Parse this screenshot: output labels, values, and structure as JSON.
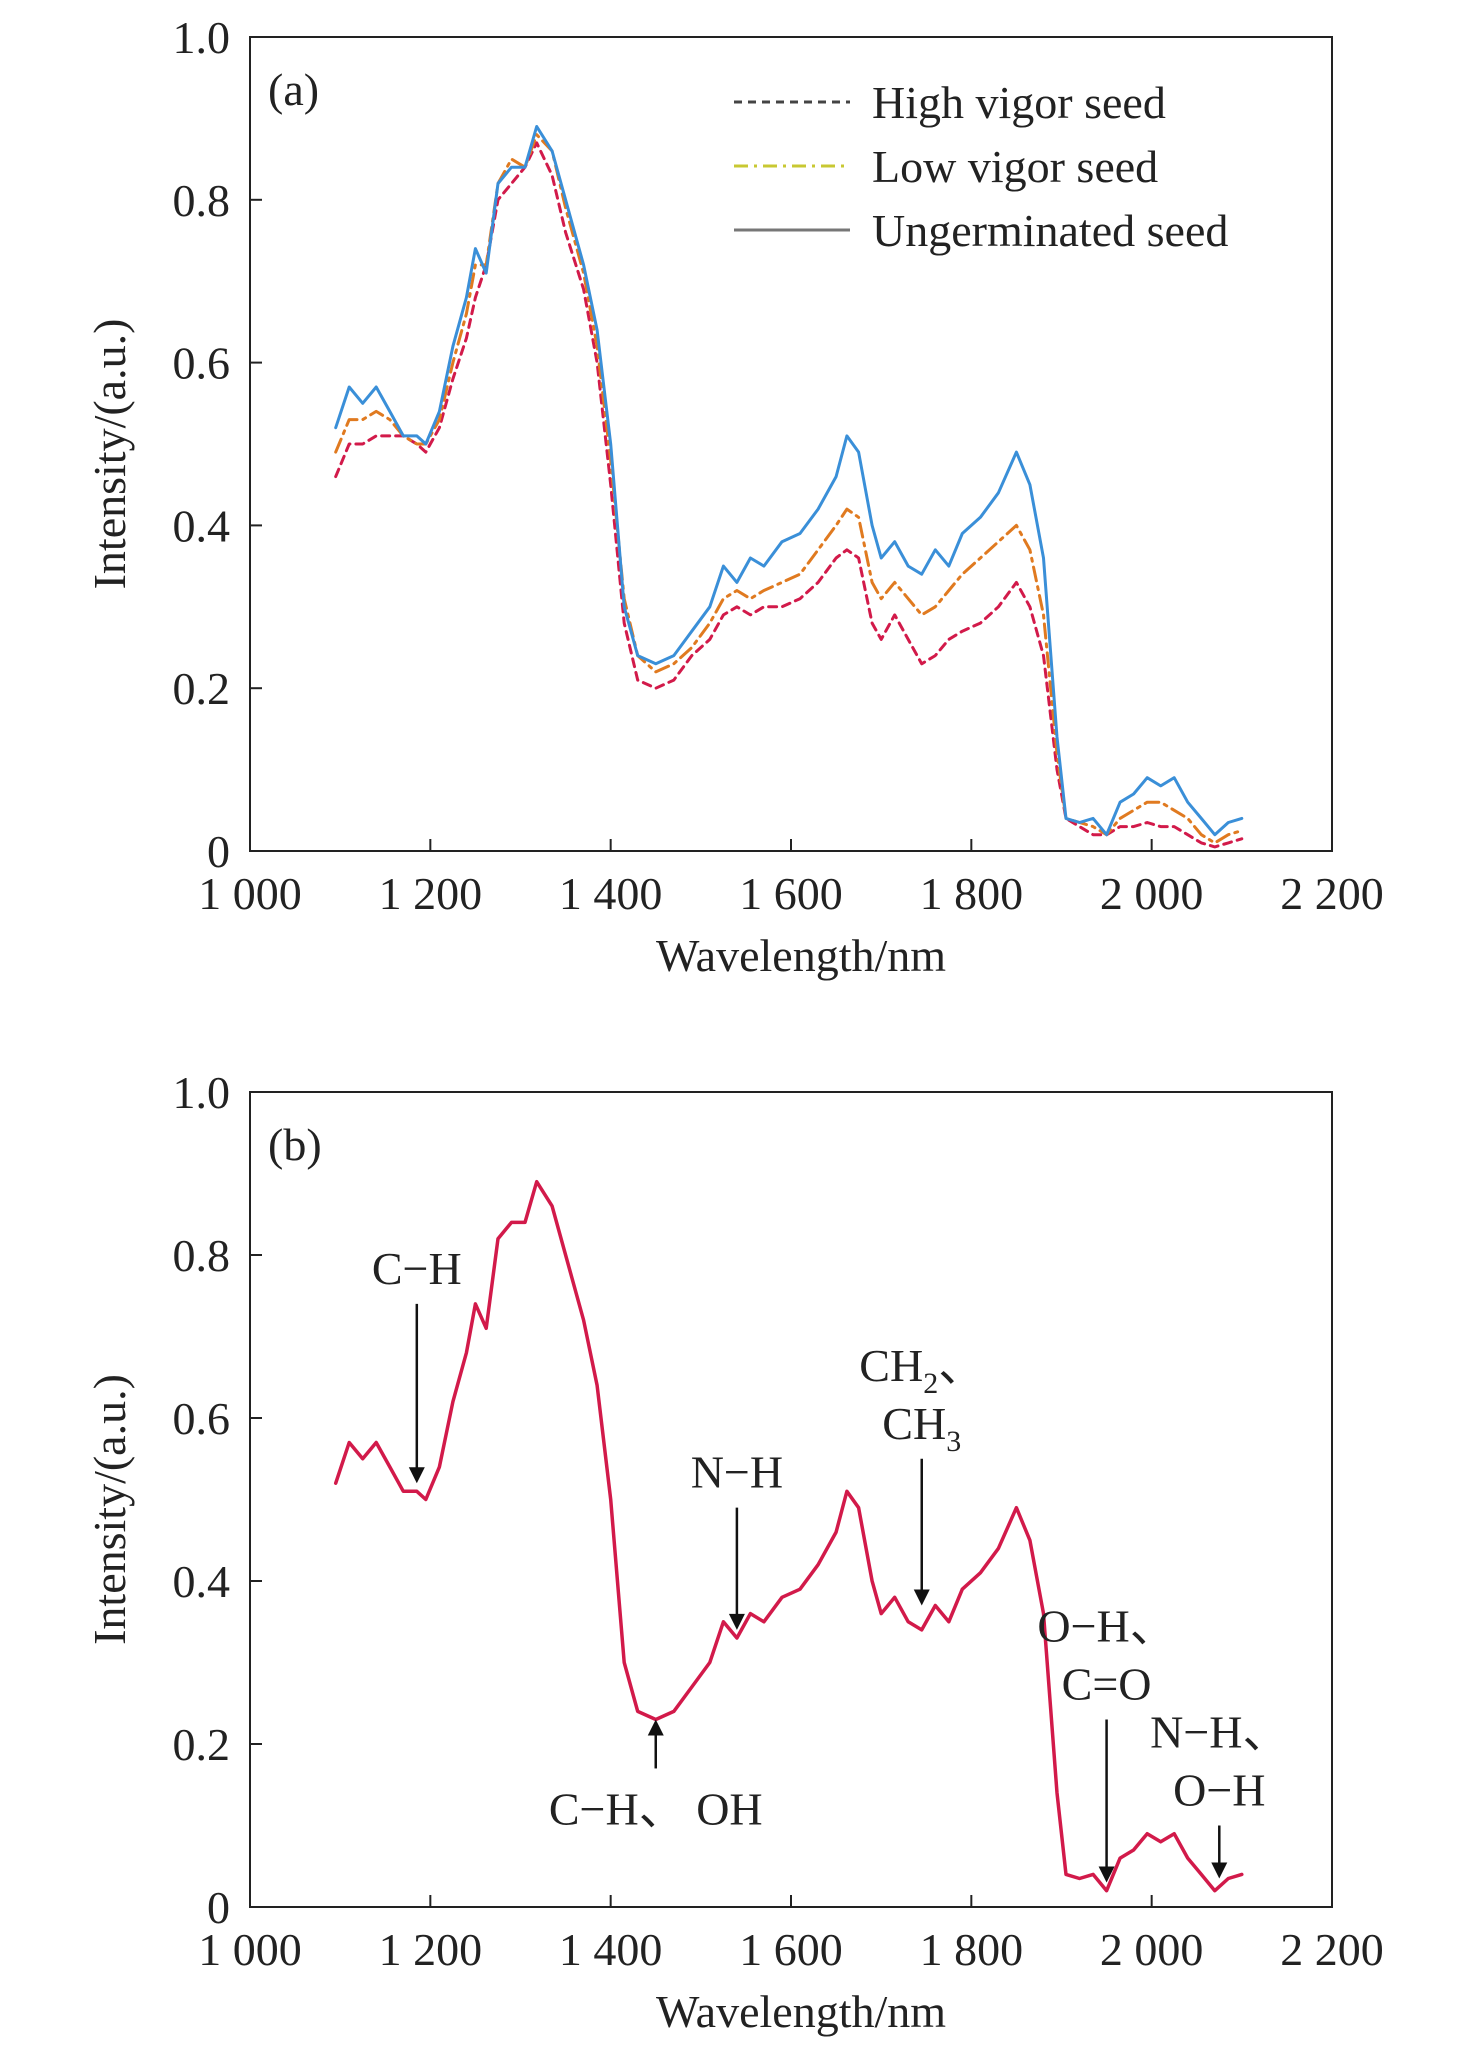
{
  "chart_data": [
    {
      "type": "line",
      "panel_label": "(a)",
      "xlabel": "Wavelength/nm",
      "ylabel": "Intensity/(a.u.)",
      "xlim": [
        1000,
        2200
      ],
      "ylim": [
        0,
        1.0
      ],
      "xticks": [
        1000,
        1200,
        1400,
        1600,
        1800,
        2000,
        2200
      ],
      "xtick_labels": [
        "1 000",
        "1 200",
        "1 400",
        "1 600",
        "1 800",
        "2 000",
        "2 200"
      ],
      "yticks": [
        0,
        0.2,
        0.4,
        0.6,
        0.8,
        1.0
      ],
      "ytick_labels": [
        "0",
        "0.2",
        "0.4",
        "0.6",
        "0.8",
        "1.0"
      ],
      "legend_position": "top-right",
      "grid": false,
      "x": [
        1095,
        1110,
        1125,
        1140,
        1155,
        1170,
        1185,
        1195,
        1210,
        1225,
        1240,
        1250,
        1262,
        1275,
        1290,
        1305,
        1318,
        1335,
        1350,
        1370,
        1385,
        1400,
        1415,
        1430,
        1450,
        1470,
        1490,
        1510,
        1525,
        1540,
        1555,
        1570,
        1590,
        1610,
        1630,
        1650,
        1662,
        1675,
        1690,
        1700,
        1715,
        1730,
        1745,
        1760,
        1775,
        1790,
        1810,
        1830,
        1850,
        1865,
        1880,
        1895,
        1905,
        1920,
        1935,
        1950,
        1965,
        1980,
        1995,
        2010,
        2025,
        2040,
        2055,
        2070,
        2085,
        2100
      ],
      "series": [
        {
          "name": "High vigor seed",
          "style": "dashed",
          "color": "#444444",
          "accent_color": "#d21a4a",
          "values": [
            0.46,
            0.5,
            0.5,
            0.51,
            0.51,
            0.51,
            0.5,
            0.49,
            0.52,
            0.58,
            0.63,
            0.68,
            0.72,
            0.8,
            0.82,
            0.84,
            0.87,
            0.83,
            0.76,
            0.69,
            0.6,
            0.45,
            0.28,
            0.21,
            0.2,
            0.21,
            0.24,
            0.26,
            0.29,
            0.3,
            0.29,
            0.3,
            0.3,
            0.31,
            0.33,
            0.36,
            0.37,
            0.36,
            0.28,
            0.26,
            0.29,
            0.26,
            0.23,
            0.24,
            0.26,
            0.27,
            0.28,
            0.3,
            0.33,
            0.3,
            0.24,
            0.1,
            0.04,
            0.03,
            0.02,
            0.02,
            0.03,
            0.03,
            0.035,
            0.03,
            0.03,
            0.02,
            0.01,
            0.005,
            0.01,
            0.015
          ]
        },
        {
          "name": "Low vigor seed",
          "style": "dash-dot",
          "color": "#c8c832",
          "accent_color": "#e07a20",
          "values": [
            0.49,
            0.53,
            0.53,
            0.54,
            0.53,
            0.51,
            0.5,
            0.5,
            0.53,
            0.6,
            0.66,
            0.72,
            0.72,
            0.82,
            0.85,
            0.84,
            0.88,
            0.86,
            0.79,
            0.71,
            0.62,
            0.48,
            0.31,
            0.24,
            0.22,
            0.23,
            0.25,
            0.28,
            0.31,
            0.32,
            0.31,
            0.32,
            0.33,
            0.34,
            0.37,
            0.4,
            0.42,
            0.41,
            0.33,
            0.31,
            0.33,
            0.31,
            0.29,
            0.3,
            0.32,
            0.34,
            0.36,
            0.38,
            0.4,
            0.37,
            0.29,
            0.12,
            0.04,
            0.035,
            0.03,
            0.02,
            0.04,
            0.05,
            0.06,
            0.06,
            0.05,
            0.04,
            0.02,
            0.01,
            0.02,
            0.025
          ]
        },
        {
          "name": "Ungerminated seed",
          "style": "solid",
          "color": "#777777",
          "accent_color": "#3a8fd8",
          "values": [
            0.52,
            0.57,
            0.55,
            0.57,
            0.54,
            0.51,
            0.51,
            0.5,
            0.54,
            0.62,
            0.68,
            0.74,
            0.71,
            0.82,
            0.84,
            0.84,
            0.89,
            0.86,
            0.8,
            0.72,
            0.64,
            0.5,
            0.3,
            0.24,
            0.23,
            0.24,
            0.27,
            0.3,
            0.35,
            0.33,
            0.36,
            0.35,
            0.38,
            0.39,
            0.42,
            0.46,
            0.51,
            0.49,
            0.4,
            0.36,
            0.38,
            0.35,
            0.34,
            0.37,
            0.35,
            0.39,
            0.41,
            0.44,
            0.49,
            0.45,
            0.36,
            0.14,
            0.04,
            0.035,
            0.04,
            0.02,
            0.06,
            0.07,
            0.09,
            0.08,
            0.09,
            0.06,
            0.04,
            0.02,
            0.035,
            0.04
          ]
        }
      ]
    },
    {
      "type": "line",
      "panel_label": "(b)",
      "xlabel": "Wavelength/nm",
      "ylabel": "Intensity/(a.u.)",
      "xlim": [
        1000,
        2200
      ],
      "ylim": [
        0,
        1.0
      ],
      "xticks": [
        1000,
        1200,
        1400,
        1600,
        1800,
        2000,
        2200
      ],
      "xtick_labels": [
        "1 000",
        "1 200",
        "1 400",
        "1 600",
        "1 800",
        "2 000",
        "2 200"
      ],
      "yticks": [
        0,
        0.2,
        0.4,
        0.6,
        0.8,
        1.0
      ],
      "ytick_labels": [
        "0",
        "0.2",
        "0.4",
        "0.6",
        "0.8",
        "1.0"
      ],
      "grid": false,
      "x": [
        1095,
        1110,
        1125,
        1140,
        1155,
        1170,
        1185,
        1195,
        1210,
        1225,
        1240,
        1250,
        1262,
        1275,
        1290,
        1305,
        1318,
        1335,
        1350,
        1370,
        1385,
        1400,
        1415,
        1430,
        1450,
        1470,
        1490,
        1510,
        1525,
        1540,
        1555,
        1570,
        1590,
        1610,
        1630,
        1650,
        1662,
        1675,
        1690,
        1700,
        1715,
        1730,
        1745,
        1760,
        1775,
        1790,
        1810,
        1830,
        1850,
        1865,
        1880,
        1895,
        1905,
        1920,
        1935,
        1950,
        1965,
        1980,
        1995,
        2010,
        2025,
        2040,
        2055,
        2070,
        2085,
        2100
      ],
      "series": [
        {
          "color": "#d21a4a",
          "values": [
            0.52,
            0.57,
            0.55,
            0.57,
            0.54,
            0.51,
            0.51,
            0.5,
            0.54,
            0.62,
            0.68,
            0.74,
            0.71,
            0.82,
            0.84,
            0.84,
            0.89,
            0.86,
            0.8,
            0.72,
            0.64,
            0.5,
            0.3,
            0.24,
            0.23,
            0.24,
            0.27,
            0.3,
            0.35,
            0.33,
            0.36,
            0.35,
            0.38,
            0.39,
            0.42,
            0.46,
            0.51,
            0.49,
            0.4,
            0.36,
            0.38,
            0.35,
            0.34,
            0.37,
            0.35,
            0.39,
            0.41,
            0.44,
            0.49,
            0.45,
            0.36,
            0.14,
            0.04,
            0.035,
            0.04,
            0.02,
            0.06,
            0.07,
            0.09,
            0.08,
            0.09,
            0.06,
            0.04,
            0.02,
            0.035,
            0.04
          ]
        }
      ],
      "annotations": [
        {
          "lines": [
            {
              "text": "C−H"
            }
          ],
          "x": 1185,
          "arrow_from_y": 0.74,
          "arrow_to_y": 0.52,
          "direction": "down"
        },
        {
          "lines": [
            {
              "text": "C−H、 OH"
            }
          ],
          "x": 1450,
          "arrow_from_y": 0.17,
          "arrow_to_y": 0.23,
          "direction": "up"
        },
        {
          "lines": [
            {
              "text": "N−H"
            }
          ],
          "x": 1540,
          "arrow_from_y": 0.49,
          "arrow_to_y": 0.34,
          "direction": "down"
        },
        {
          "lines": [
            {
              "text": "CH",
              "sub": "2",
              "after": "、"
            },
            {
              "text": "CH",
              "sub": "3",
              "after": ""
            }
          ],
          "x": 1745,
          "arrow_from_y": 0.55,
          "arrow_to_y": 0.37,
          "direction": "down"
        },
        {
          "lines": [
            {
              "text": "O−H、"
            },
            {
              "text": "C=O"
            }
          ],
          "x": 1950,
          "arrow_from_y": 0.23,
          "arrow_to_y": 0.03,
          "direction": "down"
        },
        {
          "lines": [
            {
              "text": "N−H、"
            },
            {
              "text": "O−H"
            }
          ],
          "x": 2075,
          "arrow_from_y": 0.1,
          "arrow_to_y": 0.035,
          "direction": "down"
        }
      ]
    }
  ]
}
